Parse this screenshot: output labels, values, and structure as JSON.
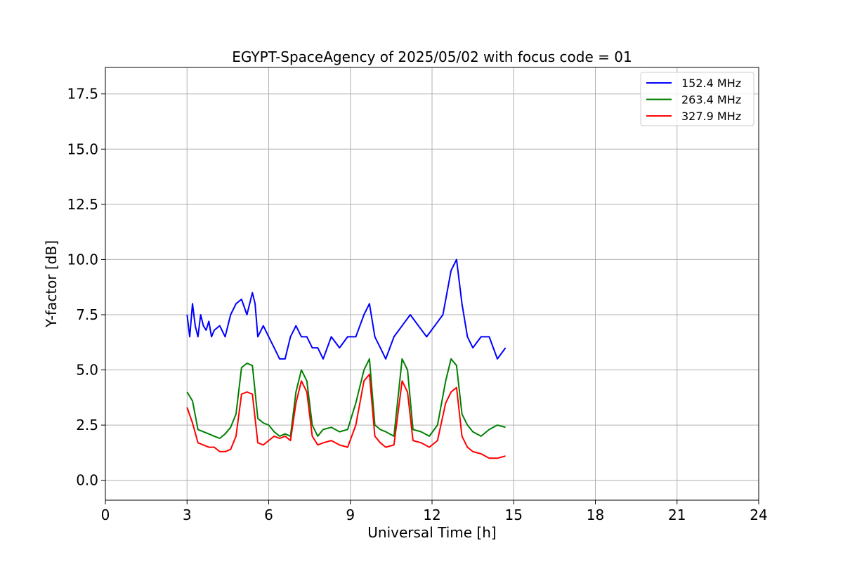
{
  "chart_data": {
    "type": "line",
    "title": "EGYPT-SpaceAgency of 2025/05/02 with focus code = 01",
    "xlabel": "Universal Time [h]",
    "ylabel": "Y-factor [dB]",
    "xlim": [
      0,
      24
    ],
    "ylim": [
      -0.9,
      18.7
    ],
    "xticks": [
      0,
      3,
      6,
      9,
      12,
      15,
      18,
      21,
      24
    ],
    "xtick_labels": [
      "0",
      "3",
      "6",
      "9",
      "12",
      "15",
      "18",
      "21",
      "24"
    ],
    "yticks": [
      0.0,
      2.5,
      5.0,
      7.5,
      10.0,
      12.5,
      15.0,
      17.5
    ],
    "ytick_labels": [
      "0.0",
      "2.5",
      "5.0",
      "7.5",
      "10.0",
      "12.5",
      "15.0",
      "17.5"
    ],
    "grid": true,
    "legend_position": "top-right",
    "series": [
      {
        "name": "152.4 MHz",
        "color": "#0000ff",
        "x": [
          3.0,
          3.1,
          3.2,
          3.3,
          3.4,
          3.5,
          3.6,
          3.7,
          3.8,
          3.9,
          4.0,
          4.2,
          4.4,
          4.6,
          4.8,
          5.0,
          5.2,
          5.4,
          5.5,
          5.6,
          5.8,
          6.0,
          6.2,
          6.4,
          6.6,
          6.8,
          7.0,
          7.2,
          7.4,
          7.6,
          7.8,
          8.0,
          8.3,
          8.6,
          8.9,
          9.2,
          9.5,
          9.7,
          9.9,
          10.1,
          10.3,
          10.6,
          10.9,
          11.2,
          11.5,
          11.8,
          12.1,
          12.4,
          12.7,
          12.9,
          13.1,
          13.3,
          13.5,
          13.8,
          14.1,
          14.4,
          14.7
        ],
        "y": [
          7.5,
          6.5,
          8.0,
          7.0,
          6.5,
          7.5,
          7.0,
          6.8,
          7.2,
          6.5,
          6.8,
          7.0,
          6.5,
          7.5,
          8.0,
          8.2,
          7.5,
          8.5,
          8.0,
          6.5,
          7.0,
          6.5,
          6.0,
          5.5,
          5.5,
          6.5,
          7.0,
          6.5,
          6.5,
          6.0,
          6.0,
          5.5,
          6.5,
          6.0,
          6.5,
          6.5,
          7.5,
          8.0,
          6.5,
          6.0,
          5.5,
          6.5,
          7.0,
          7.5,
          7.0,
          6.5,
          7.0,
          7.5,
          9.5,
          10.0,
          8.0,
          6.5,
          6.0,
          6.5,
          6.5,
          5.5,
          6.0
        ]
      },
      {
        "name": "263.4 MHz",
        "color": "#008000",
        "x": [
          3.0,
          3.2,
          3.4,
          3.6,
          3.8,
          4.0,
          4.2,
          4.4,
          4.6,
          4.8,
          5.0,
          5.2,
          5.4,
          5.6,
          5.8,
          6.0,
          6.2,
          6.4,
          6.6,
          6.8,
          7.0,
          7.2,
          7.4,
          7.6,
          7.8,
          8.0,
          8.3,
          8.6,
          8.9,
          9.2,
          9.5,
          9.7,
          9.9,
          10.1,
          10.3,
          10.6,
          10.9,
          11.1,
          11.3,
          11.6,
          11.9,
          12.2,
          12.5,
          12.7,
          12.9,
          13.1,
          13.3,
          13.5,
          13.8,
          14.1,
          14.4,
          14.7
        ],
        "y": [
          4.0,
          3.6,
          2.3,
          2.2,
          2.1,
          2.0,
          1.9,
          2.1,
          2.4,
          3.0,
          5.1,
          5.3,
          5.2,
          2.8,
          2.6,
          2.5,
          2.2,
          2.0,
          2.1,
          2.0,
          4.0,
          5.0,
          4.5,
          2.5,
          2.0,
          2.3,
          2.4,
          2.2,
          2.3,
          3.5,
          5.0,
          5.5,
          2.5,
          2.3,
          2.2,
          2.0,
          5.5,
          5.0,
          2.3,
          2.2,
          2.0,
          2.5,
          4.5,
          5.5,
          5.2,
          3.0,
          2.5,
          2.2,
          2.0,
          2.3,
          2.5,
          2.4
        ]
      },
      {
        "name": "327.9 MHz",
        "color": "#ff0000",
        "x": [
          3.0,
          3.2,
          3.4,
          3.6,
          3.8,
          4.0,
          4.2,
          4.4,
          4.6,
          4.8,
          5.0,
          5.2,
          5.4,
          5.6,
          5.8,
          6.0,
          6.2,
          6.4,
          6.6,
          6.8,
          7.0,
          7.2,
          7.4,
          7.6,
          7.8,
          8.0,
          8.3,
          8.6,
          8.9,
          9.2,
          9.5,
          9.7,
          9.9,
          10.1,
          10.3,
          10.6,
          10.9,
          11.1,
          11.3,
          11.6,
          11.9,
          12.2,
          12.5,
          12.7,
          12.9,
          13.1,
          13.3,
          13.5,
          13.8,
          14.1,
          14.4,
          14.7
        ],
        "y": [
          3.3,
          2.6,
          1.7,
          1.6,
          1.5,
          1.5,
          1.3,
          1.3,
          1.4,
          2.0,
          3.9,
          4.0,
          3.9,
          1.7,
          1.6,
          1.8,
          2.0,
          1.9,
          2.0,
          1.8,
          3.5,
          4.5,
          4.0,
          2.0,
          1.6,
          1.7,
          1.8,
          1.6,
          1.5,
          2.5,
          4.5,
          4.8,
          2.0,
          1.7,
          1.5,
          1.6,
          4.5,
          4.0,
          1.8,
          1.7,
          1.5,
          1.8,
          3.5,
          4.0,
          4.2,
          2.0,
          1.5,
          1.3,
          1.2,
          1.0,
          1.0,
          1.1
        ]
      }
    ]
  }
}
